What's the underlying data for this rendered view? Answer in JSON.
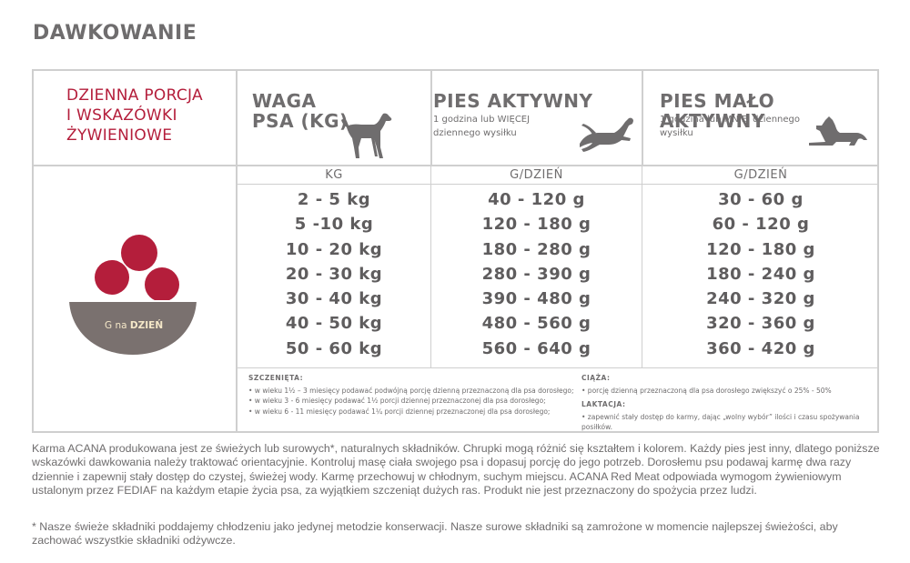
{
  "heading": "DAWKOWANIE",
  "table": {
    "title": "DZIENNA PORCJA\nI WSKAZÓWKI\nŻYWIENIOWE",
    "weight_title": "WAGA\nPSA (KG)",
    "active_title": "PIES AKTYWNY",
    "active_sub": "1 godzina lub WIĘCEJ dziennego wysiłku",
    "lazy_title": "PIES MAŁO AKTYWNY",
    "lazy_sub": "1 godzina lub MNIEJ dziennego wysiłku",
    "kg_header": "KG",
    "gday_header_1": "G/DZIEŃ",
    "gday_header_2": "G/DZIEŃ",
    "bowl_label_prefix": "G na ",
    "bowl_label_bold": "DZIEŃ",
    "weights": [
      "2 - 5 kg",
      "5 -10 kg",
      "10 - 20 kg",
      "20 - 30 kg",
      "30 - 40 kg",
      "40 - 50 kg",
      "50 - 60 kg"
    ],
    "active": [
      "40 - 120 g",
      "120 - 180 g",
      "180 - 280 g",
      "280 - 390 g",
      "390 - 480 g",
      "480 - 560 g",
      "560 - 640 g"
    ],
    "lazy": [
      "30 - 60 g",
      "60 - 120 g",
      "120 - 180 g",
      "180 - 240 g",
      "240 - 320 g",
      "320 - 360 g",
      "360 - 420 g"
    ],
    "notes_left_title": "SZCZENIĘTA:",
    "notes_left": [
      "• w wieku 1½ – 3 miesięcy podawać podwójną porcję dzienną przeznaczoną dla psa dorosłego;",
      "• w wieku 3 - 6 miesięcy podawać 1½ porcji dziennej przeznaczonej dla psa dorosłego;",
      "• w wieku 6 - 11 miesięcy podawać 1¼ porcji dziennej przeznaczonej dla psa dorosłego;"
    ],
    "notes_right_title_1": "CIĄŻA:",
    "notes_right_1": "• porcję dzienną przeznaczoną dla psa dorosłego zwiększyć o 25% - 50%",
    "notes_right_title_2": "LAKTACJA:",
    "notes_right_2": "• zapewnić stały dostęp do karmy, dając „wolny wybór” ilości i czasu spożywania posiłków."
  },
  "paragraph": "Karma ACANA produkowana jest ze świeżych lub surowych*, naturalnych składników. Chrupki mogą różnić się kształtem i kolorem. Każdy pies jest inny, dlatego poniższe wskazówki dawkowania należy traktować orientacyjnie. Kontroluj masę ciała swojego psa i dopasuj porcję do jego potrzeb. Dorosłemu psu podawaj karmę dwa razy dziennie i zapewnij stały dostęp do czystej, świeżej wody. Karmę przechowuj w chłodnym, suchym miejscu. ACANA Red Meat odpowiada wymogom żywieniowym ustalonym przez FEDIAF na każdym etapie życia psa, za wyjątkiem szczeniąt dużych ras. Produkt nie jest przeznaczony do spożycia przez ludzi.",
  "footnote": "* Nasze świeże składniki poddajemy chłodzeniu jako jedynej metodzie konserwacji. Nasze surowe składniki są zamrożone w momencie najlepszej świeżości, aby zachować wszystkie składniki odżywcze.",
  "colors": {
    "accent_red": "#b41e3b",
    "bowl_gray": "#7a716f",
    "text_gray": "#6f6d6e",
    "border": "#cfcfcf"
  },
  "icons": [
    "standing-dog-icon",
    "running-dog-icon",
    "lying-dog-icon",
    "food-bowl-icon"
  ]
}
